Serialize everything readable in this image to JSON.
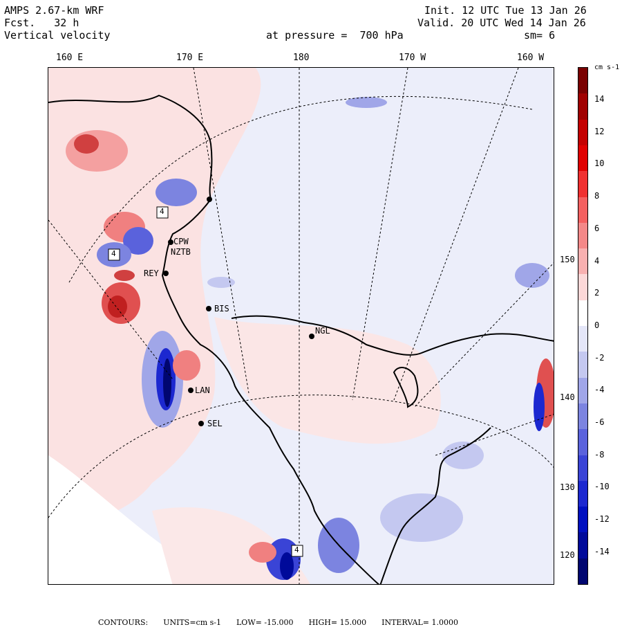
{
  "header": {
    "model": "AMPS 2.67-km WRF",
    "forecast": "Fcst.   32 h",
    "field": "Vertical velocity",
    "init": "Init. 12 UTC Tue 13 Jan 26",
    "valid": "Valid. 20 UTC Wed 14 Jan 26",
    "level": "at pressure =  700 hPa",
    "smoothing": "sm= 6"
  },
  "longitude_labels": [
    "160 E",
    "170 E",
    "180",
    "170 W",
    "160 W"
  ],
  "latitude_labels": [
    "150 W",
    "140 W",
    "130 W",
    "120 W"
  ],
  "stations": [
    {
      "label": "CPW"
    },
    {
      "label": "NZTB"
    },
    {
      "label": "REY"
    },
    {
      "label": "BIS"
    },
    {
      "label": "NGL"
    },
    {
      "label": "LAN"
    },
    {
      "label": "SEL"
    }
  ],
  "colorbar": {
    "units": "cm s-1",
    "ticks": [
      "14",
      "12",
      "10",
      "8",
      "6",
      "4",
      "2",
      "0",
      "-2",
      "-4",
      "-6",
      "-8",
      "-10",
      "-12",
      "-14"
    ],
    "colors": [
      "#7a0000",
      "#a00000",
      "#c40000",
      "#e00000",
      "#f03030",
      "#f46060",
      "#f48888",
      "#f8b0b0",
      "#fcd8d8",
      "#ffffff",
      "#e4e6f8",
      "#c4c8f0",
      "#a0a6e8",
      "#7c84e0",
      "#5a62dc",
      "#3a44d6",
      "#1c28d0",
      "#0010c0",
      "#000a9a",
      "#000670"
    ]
  },
  "footer": {
    "contours": "CONTOURS:",
    "units": "UNITS=cm s-1",
    "low": "LOW= -15.000",
    "high": "HIGH= 15.000",
    "interval": "INTERVAL= 1.0000"
  },
  "region_labels": [
    "4",
    "4",
    "4"
  ]
}
